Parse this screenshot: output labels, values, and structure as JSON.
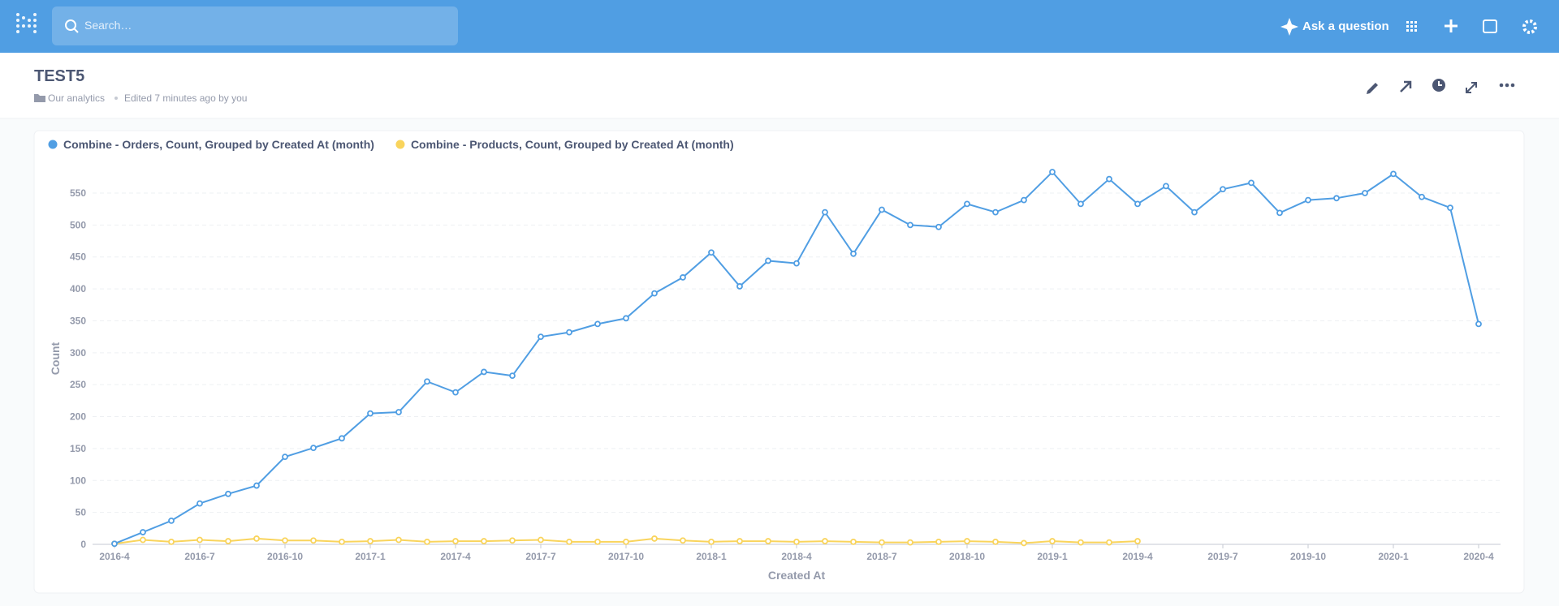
{
  "header": {
    "search_placeholder": "Search…",
    "ask": "Ask a question"
  },
  "dashboard": {
    "title": "TEST5",
    "collection": "Our analytics",
    "edited": "Edited 7 minutes ago by you"
  },
  "chart_data": {
    "type": "line",
    "categories": [
      "2016-4",
      null,
      null,
      "2016-7",
      null,
      null,
      "2016-10",
      null,
      null,
      "2017-1",
      null,
      null,
      "2017-4",
      null,
      null,
      "2017-7",
      null,
      null,
      "2017-10",
      null,
      null,
      "2018-1",
      null,
      null,
      "2018-4",
      null,
      null,
      "2018-7",
      null,
      null,
      "2018-10",
      null,
      null,
      "2019-1",
      null,
      null,
      "2019-4",
      null,
      null,
      "2019-7",
      null,
      null,
      "2019-10",
      null,
      null,
      "2020-1",
      null,
      null,
      "2020-4"
    ],
    "series": [
      {
        "name": "Combine - Orders, Count, Grouped by Created At (month)",
        "color": "#509ee3",
        "values": [
          1,
          19,
          37,
          64,
          79,
          92,
          137,
          151,
          166,
          205,
          207,
          255,
          238,
          270,
          264,
          325,
          332,
          345,
          354,
          393,
          418,
          457,
          404,
          444,
          440,
          520,
          455,
          524,
          500,
          497,
          533,
          520,
          539,
          583,
          533,
          572,
          533,
          561,
          520,
          556,
          566,
          519,
          539,
          542,
          550,
          580,
          544,
          527,
          345
        ]
      },
      {
        "name": "Combine - Products, Count, Grouped by Created At (month)",
        "color": "#f9d45c",
        "values": [
          1,
          7,
          4,
          7,
          5,
          9,
          6,
          6,
          4,
          5,
          7,
          4,
          5,
          5,
          6,
          7,
          4,
          4,
          4,
          9,
          6,
          4,
          5,
          5,
          4,
          5,
          4,
          3,
          3,
          4,
          5,
          4,
          2,
          5,
          3,
          3,
          5,
          null,
          null,
          null,
          null,
          null,
          null,
          null,
          null,
          null,
          null,
          null,
          null
        ]
      }
    ],
    "ylim": [
      0,
      550
    ],
    "yticks": [
      0,
      50,
      100,
      150,
      200,
      250,
      300,
      350,
      400,
      450,
      500,
      550
    ],
    "ylabel": "Count",
    "xlabel": "Created At",
    "grid": true,
    "legend": "top-left"
  }
}
